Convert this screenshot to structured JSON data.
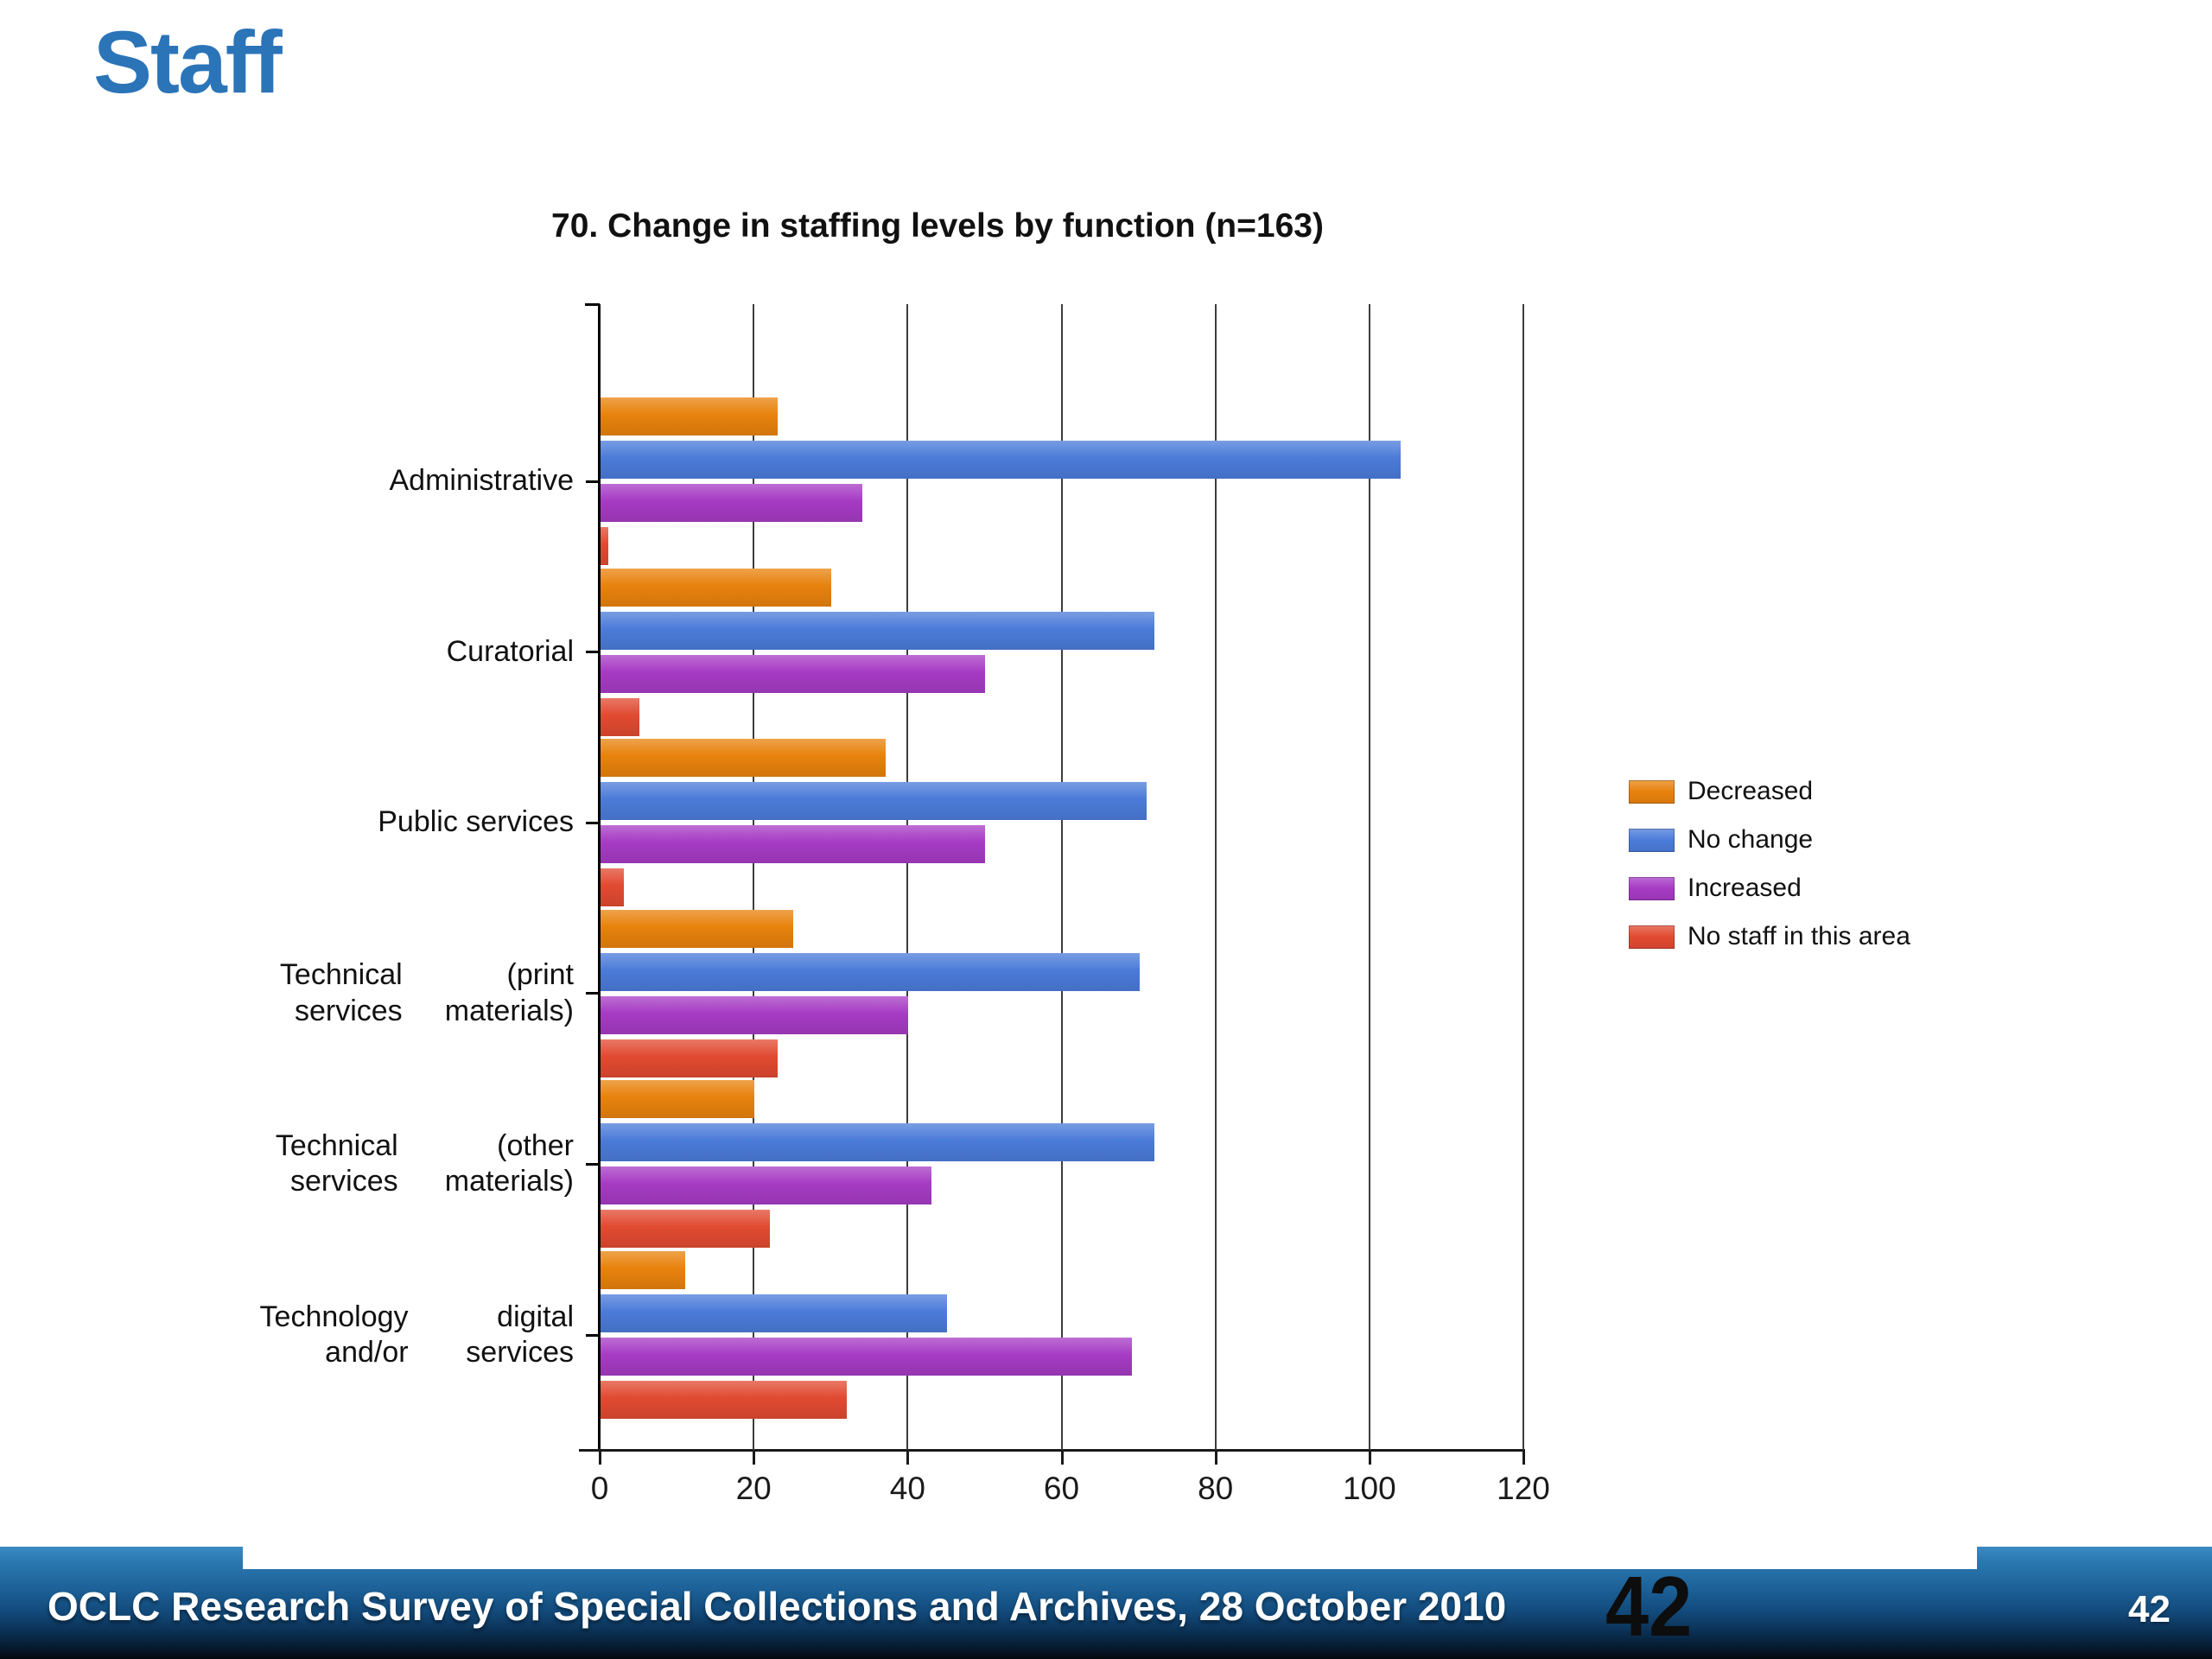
{
  "slide": {
    "title": "Staff",
    "title_color": "#2B74B8"
  },
  "chart_data": {
    "type": "bar",
    "orientation": "horizontal",
    "title": "70. Change in staffing levels by function (n=163)",
    "categories": [
      "Administrative",
      "Curatorial",
      "Public services",
      "Technical services (print materials)",
      "Technical services (other materials)",
      "Technology and/or digital services"
    ],
    "category_labels_lines": [
      [
        "Administrative"
      ],
      [
        "Curatorial"
      ],
      [
        "Public services"
      ],
      [
        "Technical services",
        "(print materials)"
      ],
      [
        "Technical services",
        "(other materials)"
      ],
      [
        "Technology and/or",
        "digital services"
      ]
    ],
    "series": [
      {
        "name": "Decreased",
        "color": "#E8820D",
        "values": [
          23,
          30,
          37,
          25,
          20,
          11
        ]
      },
      {
        "name": "No change",
        "color": "#4B7BD9",
        "values": [
          104,
          72,
          71,
          70,
          72,
          45
        ]
      },
      {
        "name": "Increased",
        "color": "#A63BC4",
        "values": [
          34,
          50,
          50,
          40,
          43,
          69
        ]
      },
      {
        "name": "No staff in this area",
        "color": "#E14A31",
        "values": [
          1,
          5,
          3,
          23,
          22,
          32
        ]
      }
    ],
    "xlim": [
      0,
      120
    ],
    "xticks": [
      0,
      20,
      40,
      60,
      80,
      100,
      120
    ],
    "grid": true,
    "legend_position": "right"
  },
  "footer": {
    "text": "OCLC Research Survey of Special Collections and Archives, 28 October 2010",
    "page_number_large": "42",
    "page_number_small": "42"
  }
}
